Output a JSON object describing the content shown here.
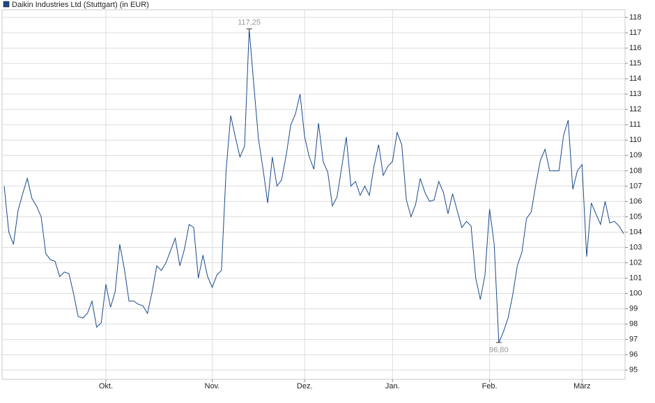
{
  "chart_data": {
    "type": "line",
    "categories": [
      null,
      null,
      null,
      null,
      null,
      null,
      null,
      null,
      null,
      null,
      null,
      null,
      null,
      null,
      null,
      null,
      null,
      null,
      null,
      null,
      null,
      null,
      "Okt.",
      null,
      null,
      null,
      null,
      null,
      null,
      null,
      null,
      null,
      null,
      null,
      null,
      null,
      null,
      null,
      null,
      null,
      null,
      null,
      null,
      null,
      null,
      "Nov.",
      null,
      null,
      null,
      null,
      null,
      null,
      null,
      null,
      null,
      null,
      null,
      null,
      null,
      null,
      null,
      null,
      null,
      null,
      null,
      "Dez.",
      null,
      null,
      null,
      null,
      null,
      null,
      null,
      null,
      null,
      null,
      null,
      null,
      null,
      null,
      null,
      null,
      null,
      null,
      "Jan.",
      null,
      null,
      null,
      null,
      null,
      null,
      null,
      null,
      null,
      null,
      null,
      null,
      null,
      null,
      null,
      null,
      null,
      null,
      null,
      null,
      "Feb.",
      null,
      null,
      null,
      null,
      null,
      null,
      null,
      null,
      null,
      null,
      null,
      null,
      null,
      null,
      null,
      null,
      null,
      null,
      null,
      "März",
      null,
      null,
      null,
      null,
      null,
      null,
      null,
      null,
      null
    ],
    "series": [
      {
        "name": "Daikin Industries Ltd (Stuttgart) (in EUR)",
        "color": "#1a4a8c",
        "values": [
          107.0,
          104,
          103.2,
          105.4,
          106.5,
          107.5,
          106.2,
          105.7,
          105,
          102.6,
          102.2,
          102.1,
          101.1,
          101.4,
          101.3,
          100,
          98.5,
          98.4,
          98.7,
          99.5,
          97.8,
          98.1,
          100.6,
          99.1,
          100.1,
          103.2,
          101.6,
          99.5,
          99.5,
          99.3,
          99.2,
          98.7,
          100.1,
          101.8,
          101.5,
          102,
          102.8,
          103.6,
          101.8,
          102.9,
          104.5,
          104.3,
          101,
          102.5,
          101.1,
          100.4,
          101.2,
          101.5,
          108,
          111.6,
          110.2,
          108.9,
          109.6,
          117.25,
          113.6,
          110.1,
          108.1,
          105.9,
          108.9,
          107,
          107.4,
          109,
          111,
          111.7,
          113,
          110.2,
          108.9,
          108.1,
          111.1,
          108.6,
          107.9,
          105.7,
          106.3,
          108.2,
          110.2,
          107,
          107.3,
          106.4,
          107,
          106.4,
          108.3,
          109.7,
          107.7,
          108.3,
          108.6,
          110.5,
          109.7,
          106.1,
          105,
          105.8,
          107.5,
          106.6,
          106,
          106.1,
          107.3,
          106.6,
          105.2,
          106.5,
          105.4,
          104.3,
          104.7,
          104.4,
          101,
          99.6,
          101.2,
          105.5,
          103.2,
          96.8,
          97.5,
          98.4,
          99.9,
          101.8,
          102.7,
          104.9,
          105.3,
          107.1,
          108.7,
          109.4,
          108,
          108,
          108,
          110.3,
          111.3,
          106.8,
          108,
          108.4,
          102.4,
          105.9,
          105.2,
          104.5,
          106,
          104.6,
          104.7,
          104.4,
          103.9
        ],
        "value_labels": [
          null,
          null,
          null,
          null,
          null,
          null,
          null,
          null,
          null,
          null,
          null,
          null,
          null,
          null,
          null,
          null,
          null,
          null,
          null,
          null,
          null,
          null,
          null,
          null,
          null,
          null,
          null,
          null,
          null,
          null,
          null,
          null,
          null,
          null,
          null,
          null,
          null,
          null,
          null,
          null,
          null,
          null,
          null,
          null,
          null,
          null,
          null,
          null,
          null,
          null,
          null,
          null,
          null,
          "117,25",
          null,
          null,
          null,
          null,
          null,
          null,
          null,
          null,
          null,
          null,
          null,
          null,
          null,
          null,
          null,
          null,
          null,
          null,
          null,
          null,
          null,
          null,
          null,
          null,
          null,
          null,
          null,
          null,
          null,
          null,
          null,
          null,
          null,
          null,
          null,
          null,
          null,
          null,
          null,
          null,
          null,
          null,
          null,
          null,
          null,
          null,
          null,
          null,
          null,
          null,
          null,
          null,
          null,
          "96,80",
          null,
          null,
          null,
          null,
          null,
          null,
          null,
          null,
          null,
          null,
          null,
          null,
          null,
          null,
          null,
          null,
          null,
          null,
          null,
          null,
          null,
          null,
          null,
          null,
          null,
          null,
          null
        ]
      }
    ],
    "ylim": [
      94.4,
      118.5
    ],
    "yticks": [
      95,
      96,
      97,
      98,
      99,
      100,
      101,
      102,
      103,
      104,
      105,
      106,
      107,
      108,
      109,
      110,
      111,
      112,
      113,
      114,
      115,
      116,
      117,
      118
    ],
    "grid": true
  }
}
